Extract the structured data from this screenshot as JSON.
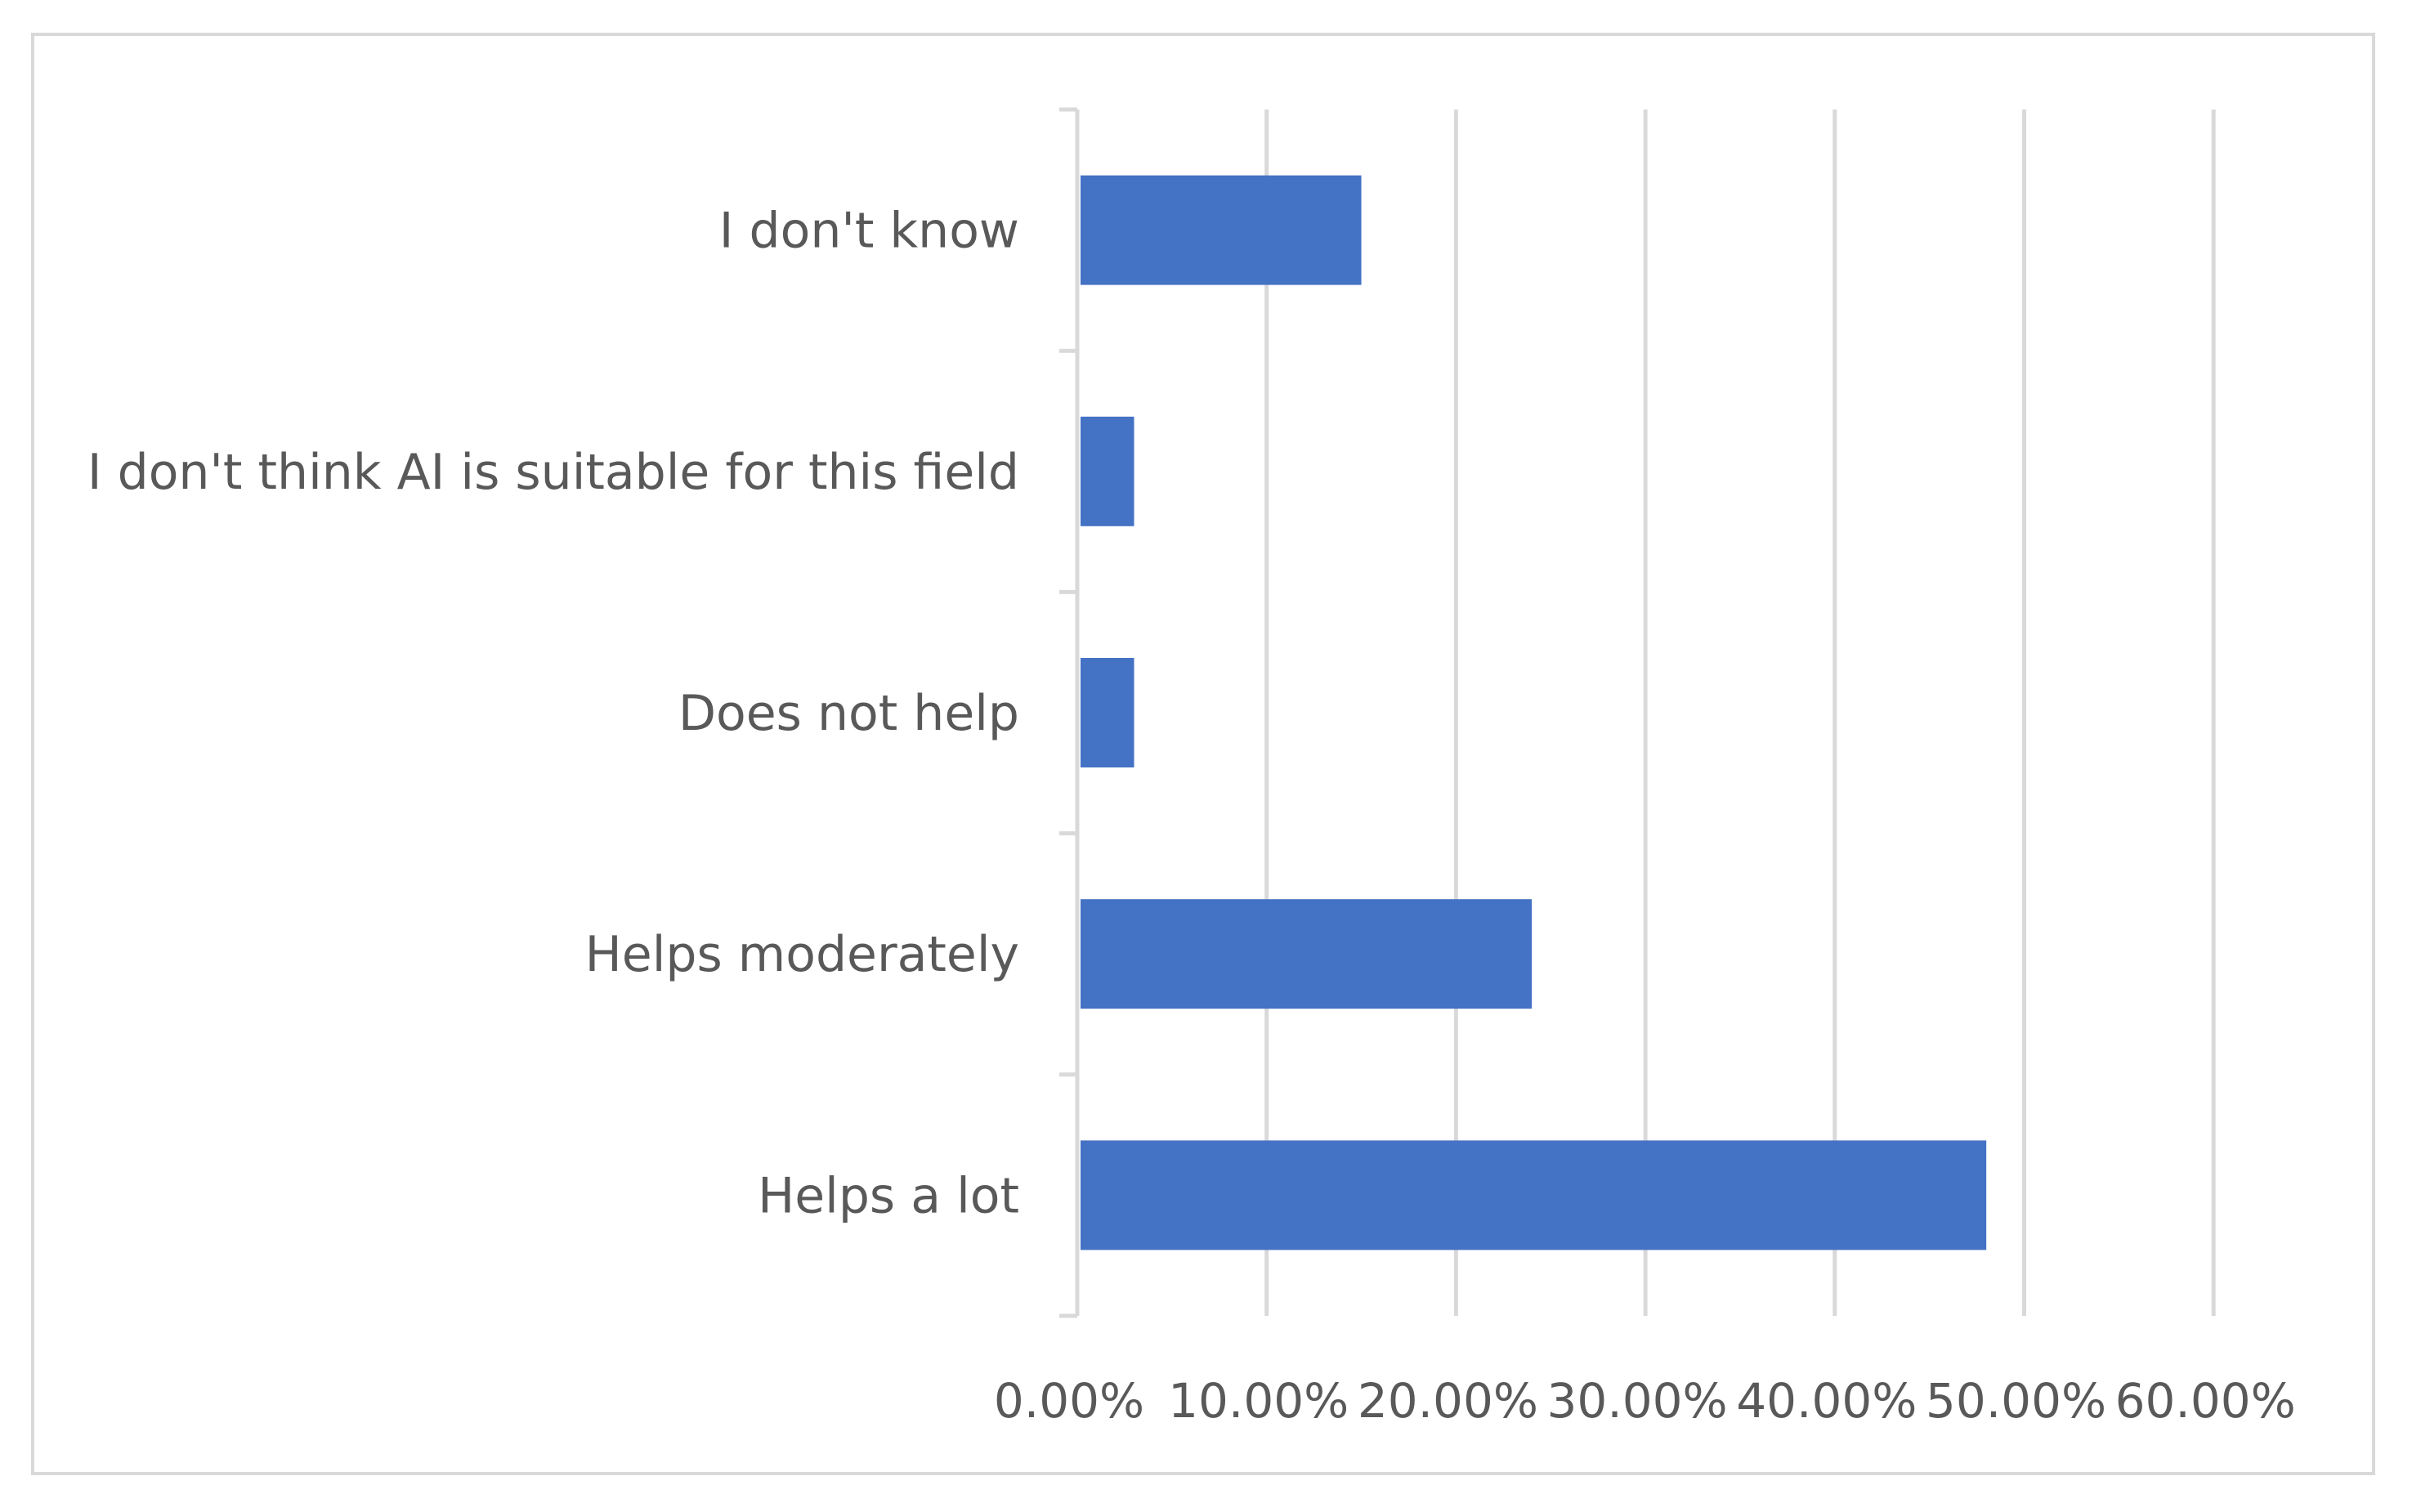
{
  "chart_data": {
    "type": "bar",
    "orientation": "horizontal",
    "categories": [
      "I don't know",
      "I don't think AI is suitable for this field",
      "Does not help",
      "Helps moderately",
      "Helps a lot"
    ],
    "values": [
      15.0,
      3.0,
      3.0,
      24.0,
      48.0
    ],
    "unit": "%",
    "xlim": [
      0,
      60
    ],
    "xticks": [
      "0.00%",
      "10.00%",
      "20.00%",
      "30.00%",
      "40.00%",
      "50.00%",
      "60.00%"
    ],
    "grid": true,
    "legend": "none",
    "title": "",
    "xlabel": "",
    "ylabel": ""
  },
  "colors": {
    "bar": "#4472c4",
    "grid": "#d9d9d9",
    "text": "#595959",
    "border": "#d9d9d9"
  }
}
